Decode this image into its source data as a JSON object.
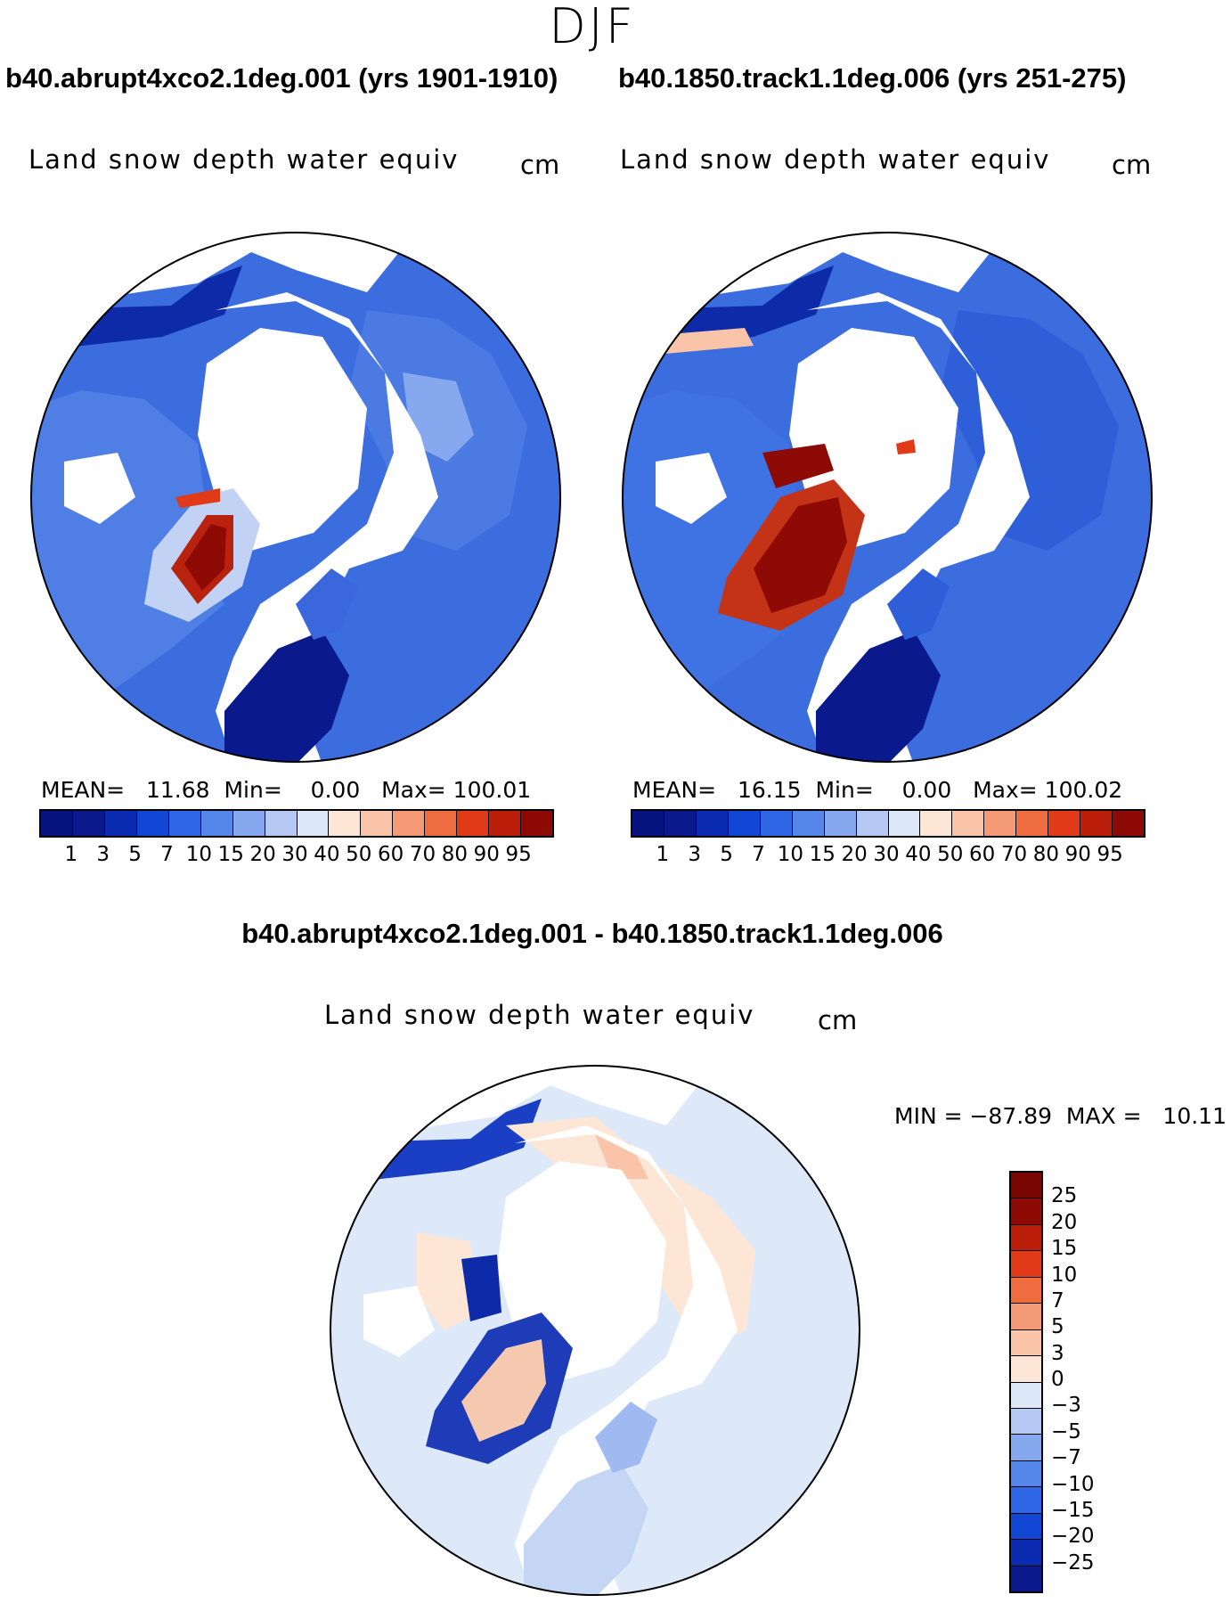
{
  "season": "DJF",
  "panel1": {
    "title": "b40.abrupt4xco2.1deg.001 (yrs 1901-1910)",
    "variable": "Land snow depth water equiv",
    "units": "cm",
    "mean_label": "MEAN=",
    "mean": "11.68",
    "min_label": "Min=",
    "min": "0.00",
    "max_label": "Max=",
    "max": "100.01"
  },
  "panel2": {
    "title": "b40.1850.track1.1deg.006 (yrs 251-275)",
    "variable": "Land snow depth water equiv",
    "units": "cm",
    "mean_label": "MEAN=",
    "mean": "16.15",
    "min_label": "Min=",
    "min": "0.00",
    "max_label": "Max=",
    "max": "100.02"
  },
  "panel3": {
    "title": "b40.abrupt4xco2.1deg.001 - b40.1850.track1.1deg.006",
    "variable": "Land snow depth water equiv",
    "units": "cm",
    "minmax_text": "MIN = −87.89  MAX =   10.11"
  },
  "colorbar_abs": {
    "levels": [
      "1",
      "3",
      "5",
      "7",
      "10",
      "15",
      "20",
      "30",
      "40",
      "50",
      "60",
      "70",
      "80",
      "90",
      "95"
    ],
    "colors": [
      "#0a1a8c",
      "#0b2bb0",
      "#1246d4",
      "#2f66e6",
      "#5586ea",
      "#86a8ee",
      "#b4c8f3",
      "#dde8f9",
      "#fde6d6",
      "#f9c4a8",
      "#f59a76",
      "#ef6b40",
      "#e03a18",
      "#bb1e0a",
      "#8e0a05"
    ]
  },
  "colorbar_diff": {
    "levels": [
      "25",
      "20",
      "15",
      "10",
      "7",
      "5",
      "3",
      "0",
      "−3",
      "−5",
      "−7",
      "−10",
      "−15",
      "−20",
      "−25"
    ],
    "colors": [
      "#8e0a05",
      "#bb1e0a",
      "#e03a18",
      "#ef6b40",
      "#f59a76",
      "#f9c4a8",
      "#fde6d6",
      "#dde8f9",
      "#b4c8f3",
      "#86a8ee",
      "#5586ea",
      "#2f66e6",
      "#1246d4",
      "#0b2bb0",
      "#0a1a8c"
    ]
  }
}
